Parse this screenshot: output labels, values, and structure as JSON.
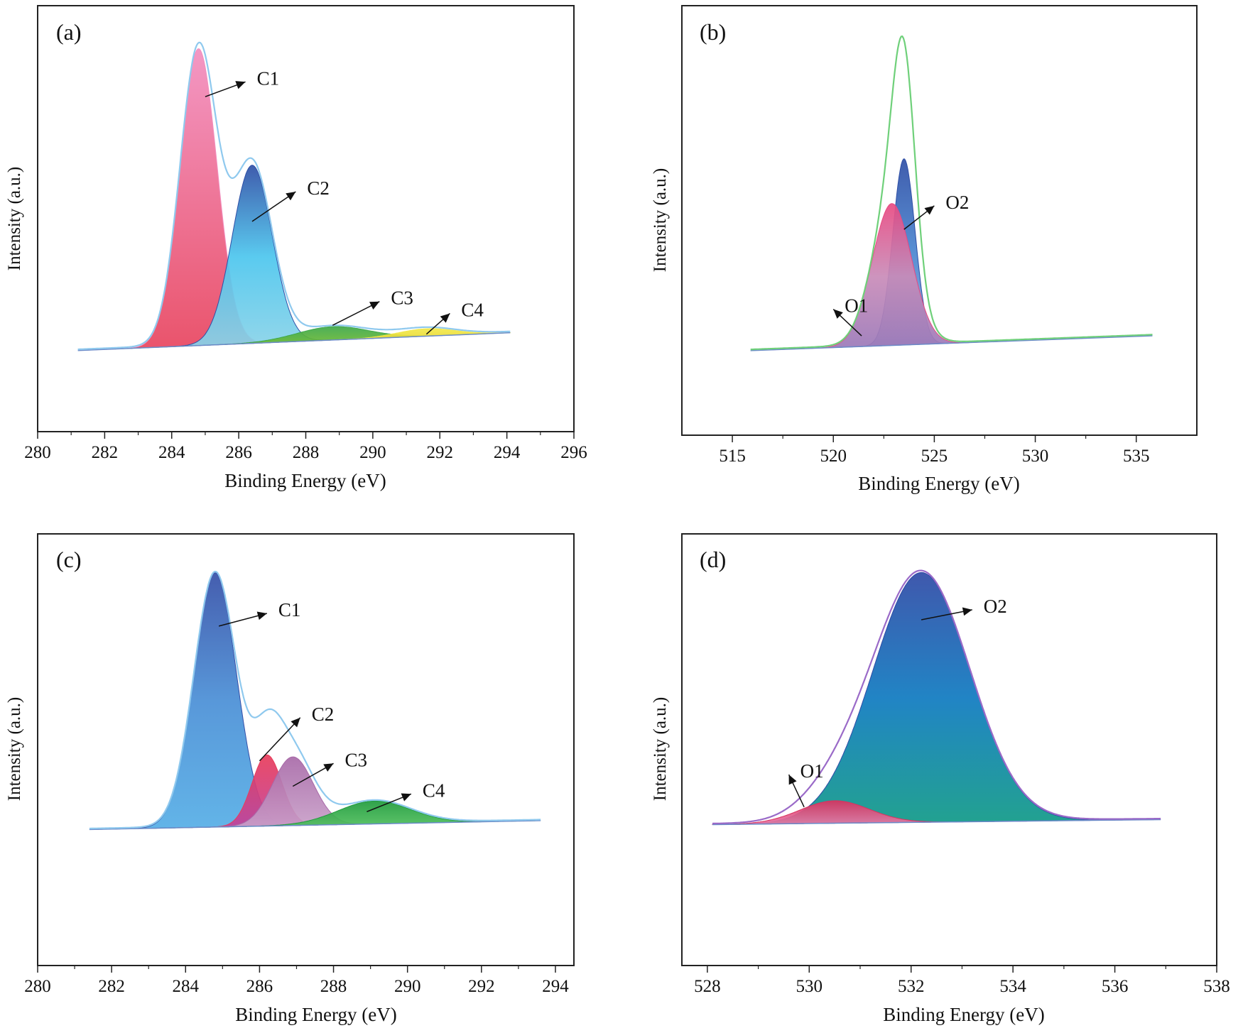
{
  "chart_data": [
    {
      "type": "area",
      "panel": "(a)",
      "xlabel": "Binding Energy (eV)",
      "ylabel": "Intensity (a.u.)",
      "xlim": [
        280,
        296
      ],
      "xticks": [
        280,
        282,
        284,
        286,
        288,
        290,
        292,
        294,
        296
      ],
      "ylim": [
        0,
        1.1
      ],
      "grid": false,
      "legend": "none",
      "data_range": [
        281.2,
        294.1
      ],
      "baseline": [
        [
          281.2,
          0.015
        ],
        [
          294.1,
          0.075
        ]
      ],
      "envelope": {
        "color": "#8fc9ee"
      },
      "peaks": [
        {
          "name": "C1",
          "center": 284.8,
          "height": 1.0,
          "fwhm": 1.3,
          "colors": [
            "#f28fbf",
            "#e8455f"
          ]
        },
        {
          "name": "C2",
          "center": 286.4,
          "height": 0.6,
          "fwhm": 1.4,
          "colors": [
            "#2f4fa6",
            "#4cc6ee",
            "#8ad3e8"
          ]
        },
        {
          "name": "C3",
          "center": 288.8,
          "height": 0.045,
          "fwhm": 2.5,
          "colors": [
            "#3ea84a",
            "#7cbf2e"
          ]
        },
        {
          "name": "C4",
          "center": 291.6,
          "height": 0.025,
          "fwhm": 2.0,
          "colors": [
            "#f2e84a",
            "#e6d52e"
          ]
        }
      ],
      "annotations": [
        {
          "text": "C1",
          "from": [
            285.0,
            0.87
          ],
          "to": [
            286.2,
            0.92
          ]
        },
        {
          "text": "C2",
          "from": [
            286.4,
            0.45
          ],
          "to": [
            287.7,
            0.55
          ]
        },
        {
          "text": "C3",
          "from": [
            288.8,
            0.1
          ],
          "to": [
            290.2,
            0.18
          ]
        },
        {
          "text": "C4",
          "from": [
            291.6,
            0.07
          ],
          "to": [
            292.3,
            0.14
          ]
        }
      ]
    },
    {
      "type": "area",
      "panel": "(b)",
      "xlabel": "Binding Energy (eV)",
      "ylabel": "Intensity (a.u.)",
      "xlim": [
        512.5,
        538
      ],
      "xticks": [
        515,
        520,
        525,
        530,
        535
      ],
      "ylim": [
        0,
        1.1
      ],
      "grid": false,
      "legend": "none",
      "data_range": [
        515.9,
        535.8
      ],
      "baseline": [
        [
          515.9,
          0.01
        ],
        [
          535.8,
          0.06
        ]
      ],
      "envelope": {
        "color": "#6fd07a"
      },
      "peaks": [
        {
          "name": "O1",
          "center": 522.9,
          "height": 0.48,
          "fwhm": 2.3,
          "colors": [
            "#e84a82",
            "#c98bb8",
            "#9a78b8"
          ]
        },
        {
          "name": "O2",
          "center": 523.5,
          "height": 0.63,
          "fwhm": 1.3,
          "colors": [
            "#2f4fa6",
            "#4a86d0",
            "#8fa8d8"
          ]
        }
      ],
      "annotations": [
        {
          "text": "O1",
          "from": [
            521.4,
            0.06
          ],
          "to": [
            520.0,
            0.15
          ]
        },
        {
          "text": "O2",
          "from": [
            523.5,
            0.42
          ],
          "to": [
            525.0,
            0.5
          ]
        }
      ]
    },
    {
      "type": "area",
      "panel": "(c)",
      "xlabel": "Binding Energy (eV)",
      "ylabel": "Intensity (a.u.)",
      "xlim": [
        280,
        294.5
      ],
      "xticks": [
        280,
        282,
        284,
        286,
        288,
        290,
        292,
        294
      ],
      "ylim": [
        0,
        1.1
      ],
      "grid": false,
      "legend": "none",
      "data_range": [
        281.4,
        293.6
      ],
      "baseline": [
        [
          281.4,
          0.01
        ],
        [
          293.6,
          0.045
        ]
      ],
      "envelope": {
        "color": "#8fc9ee"
      },
      "peaks": [
        {
          "name": "C1",
          "center": 284.8,
          "height": 1.0,
          "fwhm": 1.35,
          "colors": [
            "#3550a8",
            "#4a8fd6",
            "#55aee6"
          ]
        },
        {
          "name": "C2",
          "center": 286.2,
          "height": 0.28,
          "fwhm": 0.95,
          "colors": [
            "#e83c5a",
            "#c2409a"
          ]
        },
        {
          "name": "C3",
          "center": 286.9,
          "height": 0.27,
          "fwhm": 1.3,
          "colors": [
            "#a86aa8",
            "#c9a0c9"
          ]
        },
        {
          "name": "C4",
          "center": 289.1,
          "height": 0.09,
          "fwhm": 2.3,
          "colors": [
            "#1f9a3c",
            "#52c25e"
          ]
        }
      ],
      "annotations": [
        {
          "text": "C1",
          "from": [
            284.9,
            0.81
          ],
          "to": [
            286.2,
            0.86
          ]
        },
        {
          "text": "C2",
          "from": [
            286.0,
            0.28
          ],
          "to": [
            287.1,
            0.45
          ]
        },
        {
          "text": "C3",
          "from": [
            286.9,
            0.18
          ],
          "to": [
            288.0,
            0.27
          ]
        },
        {
          "text": "C4",
          "from": [
            288.9,
            0.08
          ],
          "to": [
            290.1,
            0.15
          ]
        }
      ]
    },
    {
      "type": "area",
      "panel": "(d)",
      "xlabel": "Binding Energy (eV)",
      "ylabel": "Intensity (a.u.)",
      "xlim": [
        527.5,
        538
      ],
      "xticks": [
        528,
        530,
        532,
        534,
        536,
        538
      ],
      "ylim": [
        0,
        1.1
      ],
      "grid": false,
      "legend": "none",
      "data_range": [
        528.1,
        536.9
      ],
      "baseline": [
        [
          528.1,
          0.01
        ],
        [
          536.9,
          0.03
        ]
      ],
      "envelope": {
        "color": "#9a6ac8"
      },
      "peaks": [
        {
          "name": "O1",
          "center": 530.5,
          "height": 0.09,
          "fwhm": 1.6,
          "colors": [
            "#d9325f",
            "#e87aa8"
          ]
        },
        {
          "name": "O2",
          "center": 532.2,
          "height": 1.0,
          "fwhm": 2.25,
          "colors": [
            "#2f4aa6",
            "#0e7ac0",
            "#0f9a86"
          ]
        }
      ],
      "annotations": [
        {
          "text": "O1",
          "from": [
            529.9,
            0.08
          ],
          "to": [
            529.6,
            0.21
          ]
        },
        {
          "text": "O2",
          "from": [
            532.2,
            0.83
          ],
          "to": [
            533.2,
            0.87
          ]
        }
      ]
    }
  ]
}
